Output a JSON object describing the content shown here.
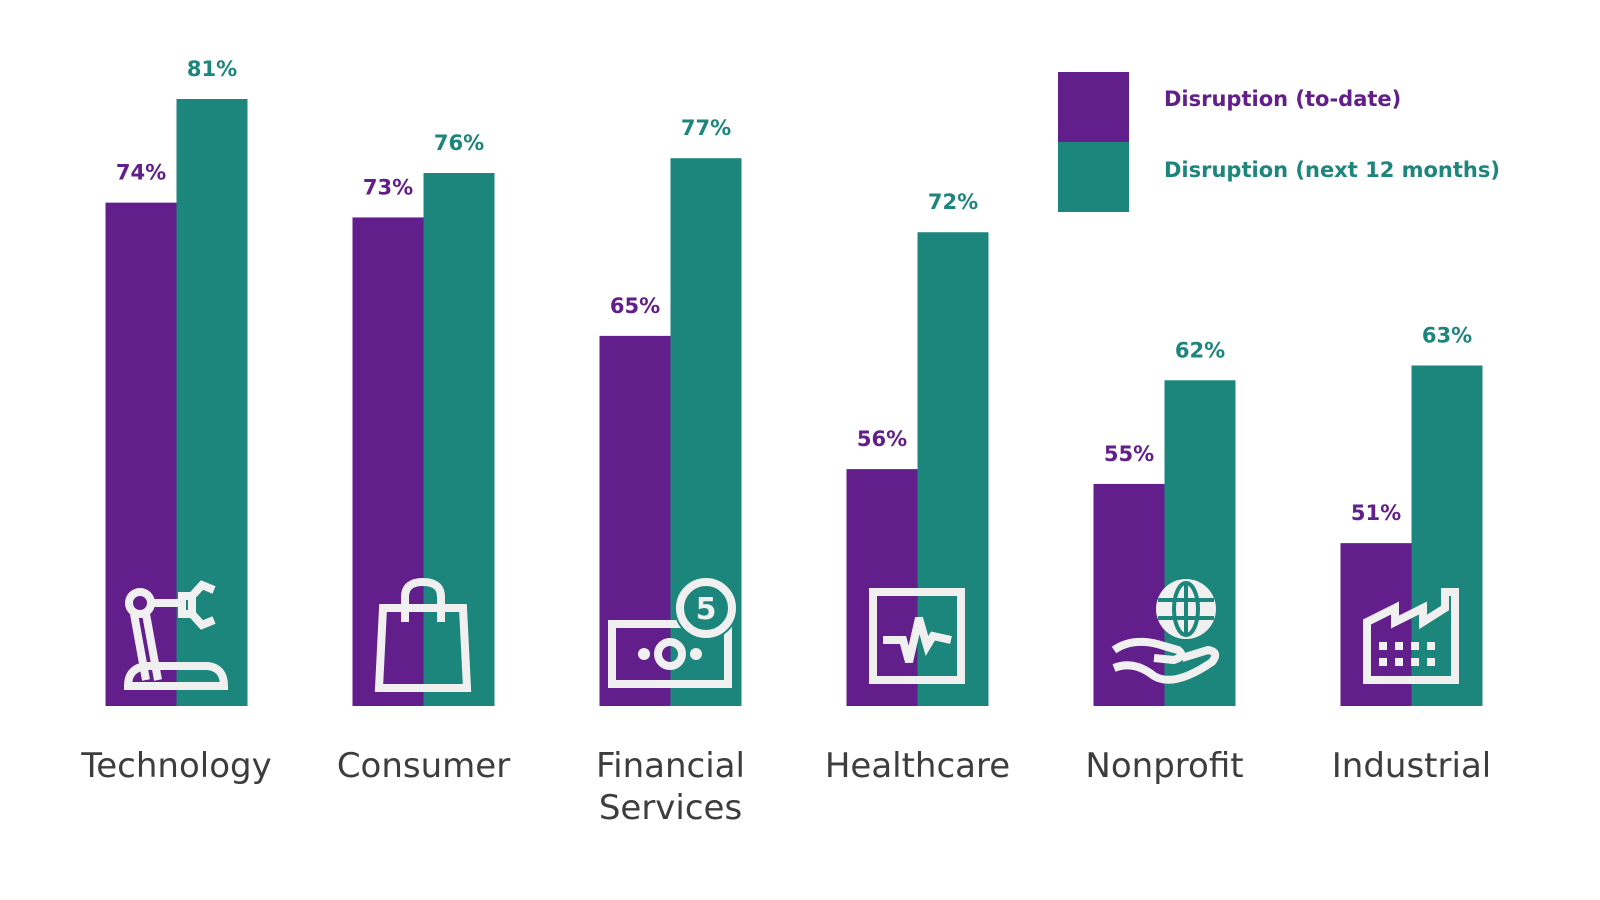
{
  "chart_data": {
    "type": "bar",
    "title": "",
    "xlabel": "",
    "ylabel": "",
    "ylim": [
      40,
      82
    ],
    "grid": false,
    "legend_position": "top-right",
    "categories": [
      "Technology",
      "Consumer",
      "Financial Services",
      "Healthcare",
      "Nonprofit",
      "Industrial"
    ],
    "category_icons": [
      "robot-arm-icon",
      "shopping-bag-icon",
      "money-coin-icon",
      "heart-monitor-icon",
      "hand-globe-icon",
      "factory-icon"
    ],
    "series": [
      {
        "name": "Disruption (to-date)",
        "color": "#621e8a",
        "values": [
          74,
          73,
          65,
          56,
          55,
          51
        ],
        "labels": [
          "74%",
          "73%",
          "65%",
          "56%",
          "55%",
          "51%"
        ]
      },
      {
        "name": "Disruption (next 12 months)",
        "color": "#1c857c",
        "values": [
          81,
          76,
          77,
          72,
          62,
          63
        ],
        "labels": [
          "81%",
          "76%",
          "77%",
          "72%",
          "62%",
          "63%"
        ]
      }
    ]
  }
}
